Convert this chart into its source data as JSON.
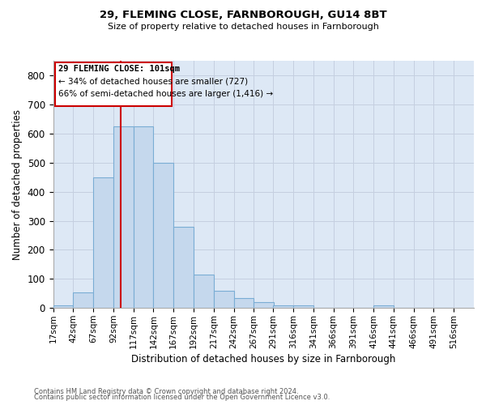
{
  "title": "29, FLEMING CLOSE, FARNBOROUGH, GU14 8BT",
  "subtitle": "Size of property relative to detached houses in Farnborough",
  "xlabel": "Distribution of detached houses by size in Farnborough",
  "ylabel": "Number of detached properties",
  "footnote1": "Contains HM Land Registry data © Crown copyright and database right 2024.",
  "footnote2": "Contains public sector information licensed under the Open Government Licence v3.0.",
  "bar_color": "#c5d8ed",
  "bar_edge_color": "#7aadd4",
  "vline_color": "#cc0000",
  "box_color": "#cc0000",
  "annotation_line1": "29 FLEMING CLOSE: 101sqm",
  "annotation_line2": "← 34% of detached houses are smaller (727)",
  "annotation_line3": "66% of semi-detached houses are larger (1,416) →",
  "bin_labels": [
    "17sqm",
    "42sqm",
    "67sqm",
    "92sqm",
    "117sqm",
    "142sqm",
    "167sqm",
    "192sqm",
    "217sqm",
    "242sqm",
    "267sqm",
    "291sqm",
    "316sqm",
    "341sqm",
    "366sqm",
    "391sqm",
    "416sqm",
    "441sqm",
    "466sqm",
    "491sqm",
    "516sqm"
  ],
  "bin_starts": [
    17,
    42,
    67,
    92,
    117,
    142,
    167,
    192,
    217,
    242,
    267,
    291,
    316,
    341,
    366,
    391,
    416,
    441,
    466,
    491,
    516
  ],
  "bar_heights": [
    10,
    55,
    450,
    625,
    625,
    500,
    280,
    115,
    60,
    35,
    20,
    10,
    8,
    0,
    0,
    0,
    8,
    0,
    0,
    0
  ],
  "ylim": [
    0,
    850
  ],
  "yticks": [
    0,
    100,
    200,
    300,
    400,
    500,
    600,
    700,
    800
  ],
  "bin_width": 25,
  "vline_x": 101,
  "xlim_left": 17,
  "xlim_right": 541
}
